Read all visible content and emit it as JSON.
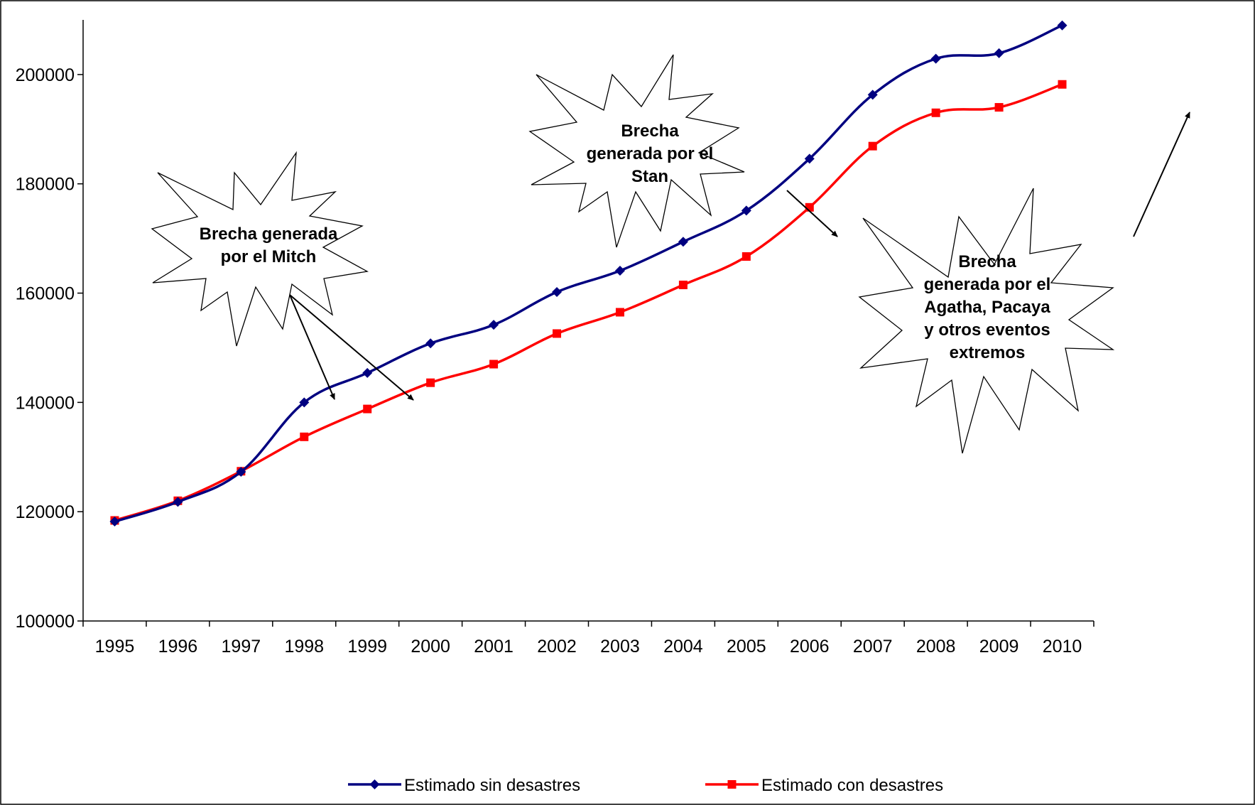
{
  "chart_data": {
    "type": "line",
    "categories": [
      "1995",
      "1996",
      "1997",
      "1998",
      "1999",
      "2000",
      "2001",
      "2002",
      "2003",
      "2004",
      "2005",
      "2006",
      "2007",
      "2008",
      "2009",
      "2010"
    ],
    "series": [
      {
        "name": "Estimado sin desastres",
        "color": "#000080",
        "marker": "diamond",
        "values": [
          118200,
          121800,
          127300,
          140000,
          145400,
          150800,
          154200,
          160200,
          164100,
          169400,
          175100,
          184600,
          196300,
          202900,
          203900,
          209000
        ]
      },
      {
        "name": "Estimado con desastres",
        "color": "#ff0000",
        "marker": "square",
        "values": [
          118400,
          122000,
          127400,
          133700,
          138800,
          143600,
          147000,
          152600,
          156500,
          161500,
          166700,
          175700,
          186900,
          193000,
          194000,
          198200
        ]
      }
    ],
    "ylim": [
      100000,
      210000
    ],
    "yticks": [
      "100000",
      "120000",
      "140000",
      "160000",
      "180000",
      "200000"
    ],
    "grid": false,
    "legend": "bottom",
    "annotations": [
      {
        "id": "mitch",
        "lines": [
          "Brecha generada",
          "por el Mitch"
        ]
      },
      {
        "id": "stan",
        "lines": [
          "Brecha",
          "generada por el",
          "Stan"
        ]
      },
      {
        "id": "agatha",
        "lines": [
          "Brecha",
          "generada por el",
          "Agatha, Pacaya",
          "y otros eventos",
          "extremos"
        ]
      }
    ]
  }
}
